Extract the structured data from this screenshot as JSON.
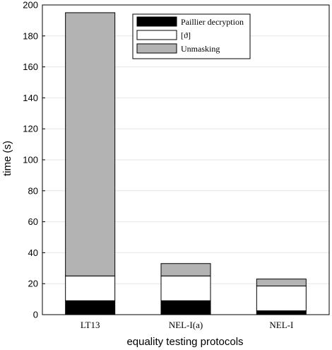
{
  "chart_data": {
    "type": "bar",
    "stacked": true,
    "title": "",
    "xlabel": "equality testing protocols",
    "ylabel": "time (s)",
    "categories": [
      "LT13",
      "NEL-I(a)",
      "NEL-I"
    ],
    "ylim": [
      0,
      200
    ],
    "yticks": [
      "0",
      "20",
      "40",
      "60",
      "80",
      "100",
      "120",
      "140",
      "160",
      "180",
      "200"
    ],
    "grid": true,
    "legend_position": "top-right",
    "series": [
      {
        "name": "Paillier decryption",
        "color": "#000000",
        "values": [
          9,
          9,
          2.5
        ]
      },
      {
        "name": "[ϑ]",
        "color": "#ffffff",
        "values": [
          16,
          16,
          16
        ]
      },
      {
        "name": "Unmasking",
        "color": "#b3b3b3",
        "values": [
          170,
          8,
          4.5
        ]
      }
    ]
  }
}
